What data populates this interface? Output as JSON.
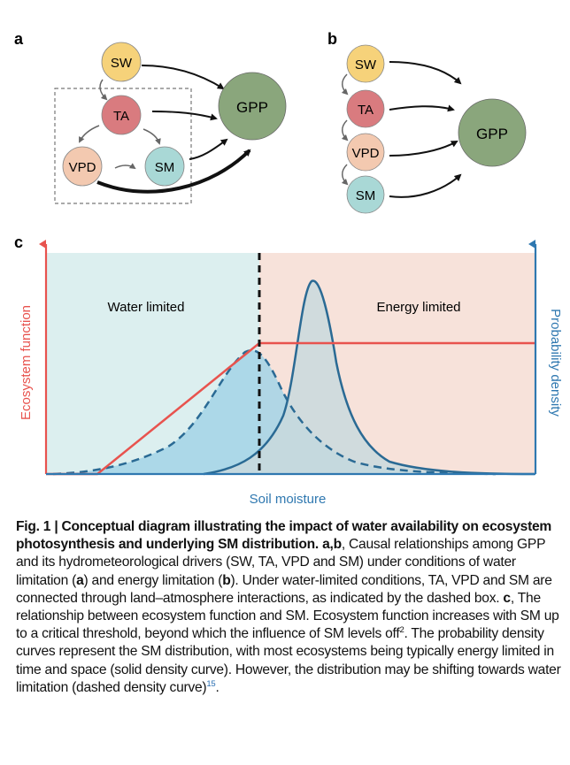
{
  "panel_a": {
    "label": "a",
    "nodes": {
      "sw": "SW",
      "ta": "TA",
      "vpd": "VPD",
      "sm": "SM",
      "gpp": "GPP"
    }
  },
  "panel_b": {
    "label": "b",
    "nodes": {
      "sw": "SW",
      "ta": "TA",
      "vpd": "VPD",
      "sm": "SM",
      "gpp": "GPP"
    }
  },
  "panel_c": {
    "label": "c",
    "region_left": "Water limited",
    "region_right": "Energy limited",
    "xlabel": "Soil moisture",
    "ylabel_left": "Ecosystem function",
    "ylabel_right": "Probability density"
  },
  "colors": {
    "sw": "#f6d27a",
    "ta": "#d97b7f",
    "vpd": "#f3c9b0",
    "sm": "#a9d8d6",
    "gpp": "#8aa67c",
    "water_bg": "#dcefef",
    "energy_bg": "#f7e2da",
    "function_line": "#e8534e",
    "axis_blue": "#2f78b0",
    "solid_fill": "#c9d9dd",
    "dashed_fill": "#a3d3e6",
    "curve": "#2a6a94"
  },
  "chart_data": {
    "type": "area",
    "title": "",
    "xlabel": "Soil moisture",
    "ylabel": "Ecosystem function",
    "y2label": "Probability density",
    "threshold_x": 0.38,
    "series": [
      {
        "kind": "line",
        "x": [
          0.0,
          0.09,
          0.38,
          1.0
        ],
        "y": [
          0.0,
          0.0,
          0.6,
          0.6
        ]
      },
      {
        "kind": "density-dashed",
        "peak_x": 0.37,
        "peak_y": 0.63
      },
      {
        "kind": "density-solid",
        "peak_x": 0.5,
        "peak_y": 0.95
      }
    ]
  },
  "caption": {
    "fig": "Fig. 1",
    "title": "Conceptual diagram illustrating the impact of water availability on ecosystem photosynthesis and underlying SM distribution.",
    "ab": "a",
    "ab2": "b",
    "t1": ", Causal relationships among GPP and its hydrometeorological drivers (SW, TA, VPD and SM) under conditions of water limitation (",
    "t2": ") and energy limitation (",
    "t3": "). Under water-limited conditions, TA, VPD and SM are connected through land–atmosphere interactions, as indicated by the dashed box. ",
    "c": "c",
    "t4": ", The relationship between ecosystem function and SM. Ecosystem function increases with SM up to a critical threshold, beyond which the influence of SM levels off",
    "ref1": "2",
    "t5": ". The probability density curves represent the SM distribution, with most ecosystems being typically energy limited in time and space (solid density curve). However, the distribution may be shifting towards water limitation (dashed density curve)",
    "ref2": "15",
    "t6": "."
  }
}
